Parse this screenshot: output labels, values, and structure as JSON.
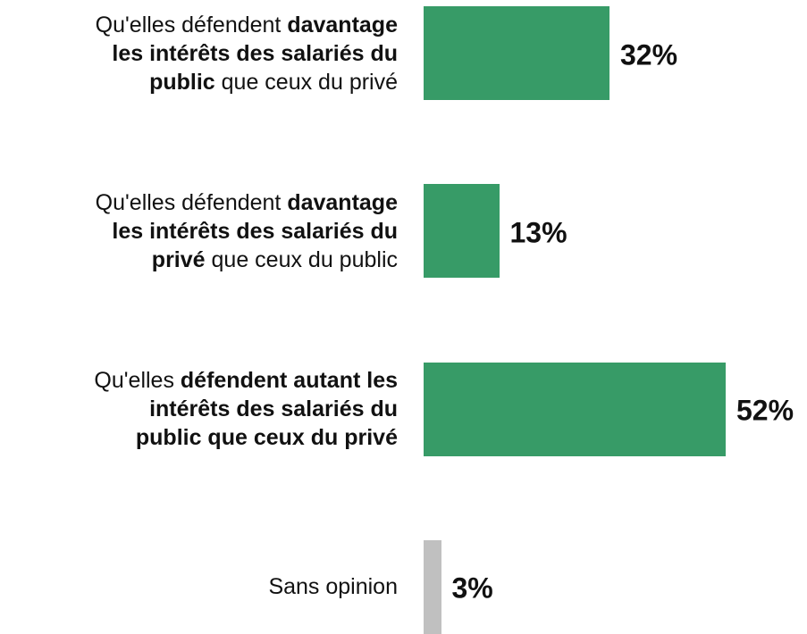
{
  "chart_data": {
    "type": "bar",
    "orientation": "horizontal",
    "categories": [
      [
        {
          "text": "Qu'elles défendent ",
          "bold": false
        },
        {
          "text": "davantage\nles intérêts des salariés du\npublic",
          "bold": true
        },
        {
          "text": " que ceux du privé",
          "bold": false
        }
      ],
      [
        {
          "text": "Qu'elles défendent ",
          "bold": false
        },
        {
          "text": "davantage\nles intérêts des salariés du\nprivé",
          "bold": true
        },
        {
          "text": " que ceux du public",
          "bold": false
        }
      ],
      [
        {
          "text": "Qu'elles ",
          "bold": false
        },
        {
          "text": "défendent autant les\nintérêts des salariés du\npublic que ceux du privé",
          "bold": true
        }
      ],
      [
        {
          "text": "Sans opinion",
          "bold": false
        }
      ]
    ],
    "values": [
      32,
      13,
      52,
      3
    ],
    "value_labels": [
      "32%",
      "13%",
      "52%",
      "3%"
    ],
    "colors": [
      "#379b67",
      "#379b67",
      "#379b67",
      "#c0c0c0"
    ]
  }
}
